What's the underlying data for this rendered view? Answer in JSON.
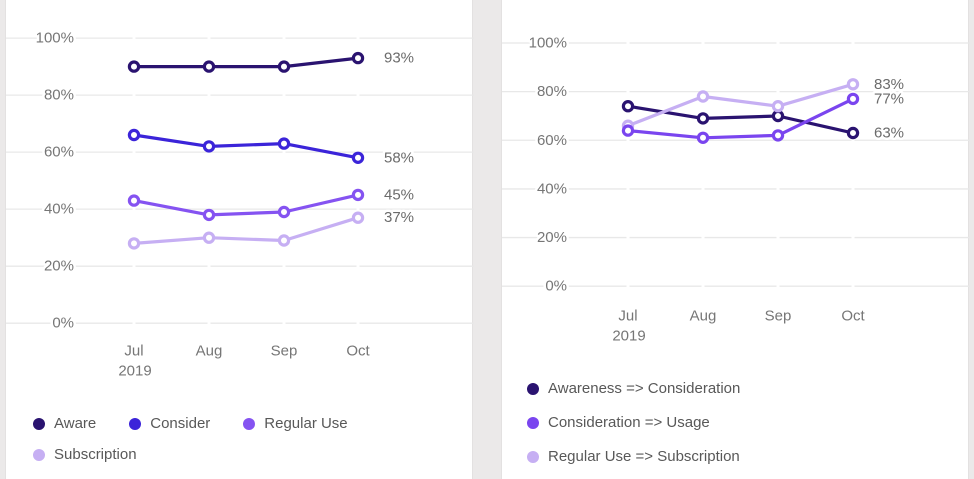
{
  "page": {
    "background_color": "#ebe9e9",
    "card_background": "#ffffff",
    "card_border_color": "#e3e1e1",
    "gridline_color": "#e8e8e8",
    "axis_text_color": "#767676",
    "value_label_color": "#6b6b6b",
    "legend_text_color": "#585858"
  },
  "chart_data": [
    {
      "type": "line",
      "title": "",
      "x_labels": [
        "Jul",
        "Aug",
        "Sep",
        "Oct"
      ],
      "x_year_label": "2019",
      "ylim": [
        0,
        100
      ],
      "grid": true,
      "legend_position": "bottom",
      "yticks": [
        {
          "value": 100,
          "label": "100%"
        },
        {
          "value": 80,
          "label": "80%"
        },
        {
          "value": 60,
          "label": "60%"
        },
        {
          "value": 40,
          "label": "40%"
        },
        {
          "value": 20,
          "label": "20%"
        },
        {
          "value": 0,
          "label": "0%"
        }
      ],
      "series": [
        {
          "name": "Aware",
          "color": "#2a1370",
          "values": [
            90,
            90,
            90,
            93
          ],
          "end_label": "93%"
        },
        {
          "name": "Consider",
          "color": "#3b24d9",
          "values": [
            66,
            62,
            63,
            58
          ],
          "end_label": "58%"
        },
        {
          "name": "Regular Use",
          "color": "#8553f1",
          "values": [
            43,
            38,
            39,
            45
          ],
          "end_label": "45%"
        },
        {
          "name": "Subscription",
          "color": "#c6aff3",
          "values": [
            28,
            30,
            29,
            37
          ],
          "end_label": "37%"
        }
      ]
    },
    {
      "type": "line",
      "title": "",
      "x_labels": [
        "Jul",
        "Aug",
        "Sep",
        "Oct"
      ],
      "x_year_label": "2019",
      "ylim": [
        0,
        100
      ],
      "grid": true,
      "legend_position": "bottom",
      "yticks": [
        {
          "value": 100,
          "label": "100%"
        },
        {
          "value": 80,
          "label": "80%"
        },
        {
          "value": 60,
          "label": "60%"
        },
        {
          "value": 40,
          "label": "40%"
        },
        {
          "value": 20,
          "label": "20%"
        },
        {
          "value": 0,
          "label": "0%"
        }
      ],
      "series": [
        {
          "name": "Awareness => Consideration",
          "color": "#2a1370",
          "values": [
            74,
            69,
            70,
            63
          ],
          "end_label": "63%"
        },
        {
          "name": "Consideration => Usage",
          "color": "#7a45ef",
          "values": [
            64,
            61,
            62,
            77
          ],
          "end_label": "77%"
        },
        {
          "name": "Regular Use => Subscription",
          "color": "#c6aff3",
          "values": [
            66,
            78,
            74,
            83
          ],
          "end_label": "83%"
        }
      ]
    }
  ]
}
